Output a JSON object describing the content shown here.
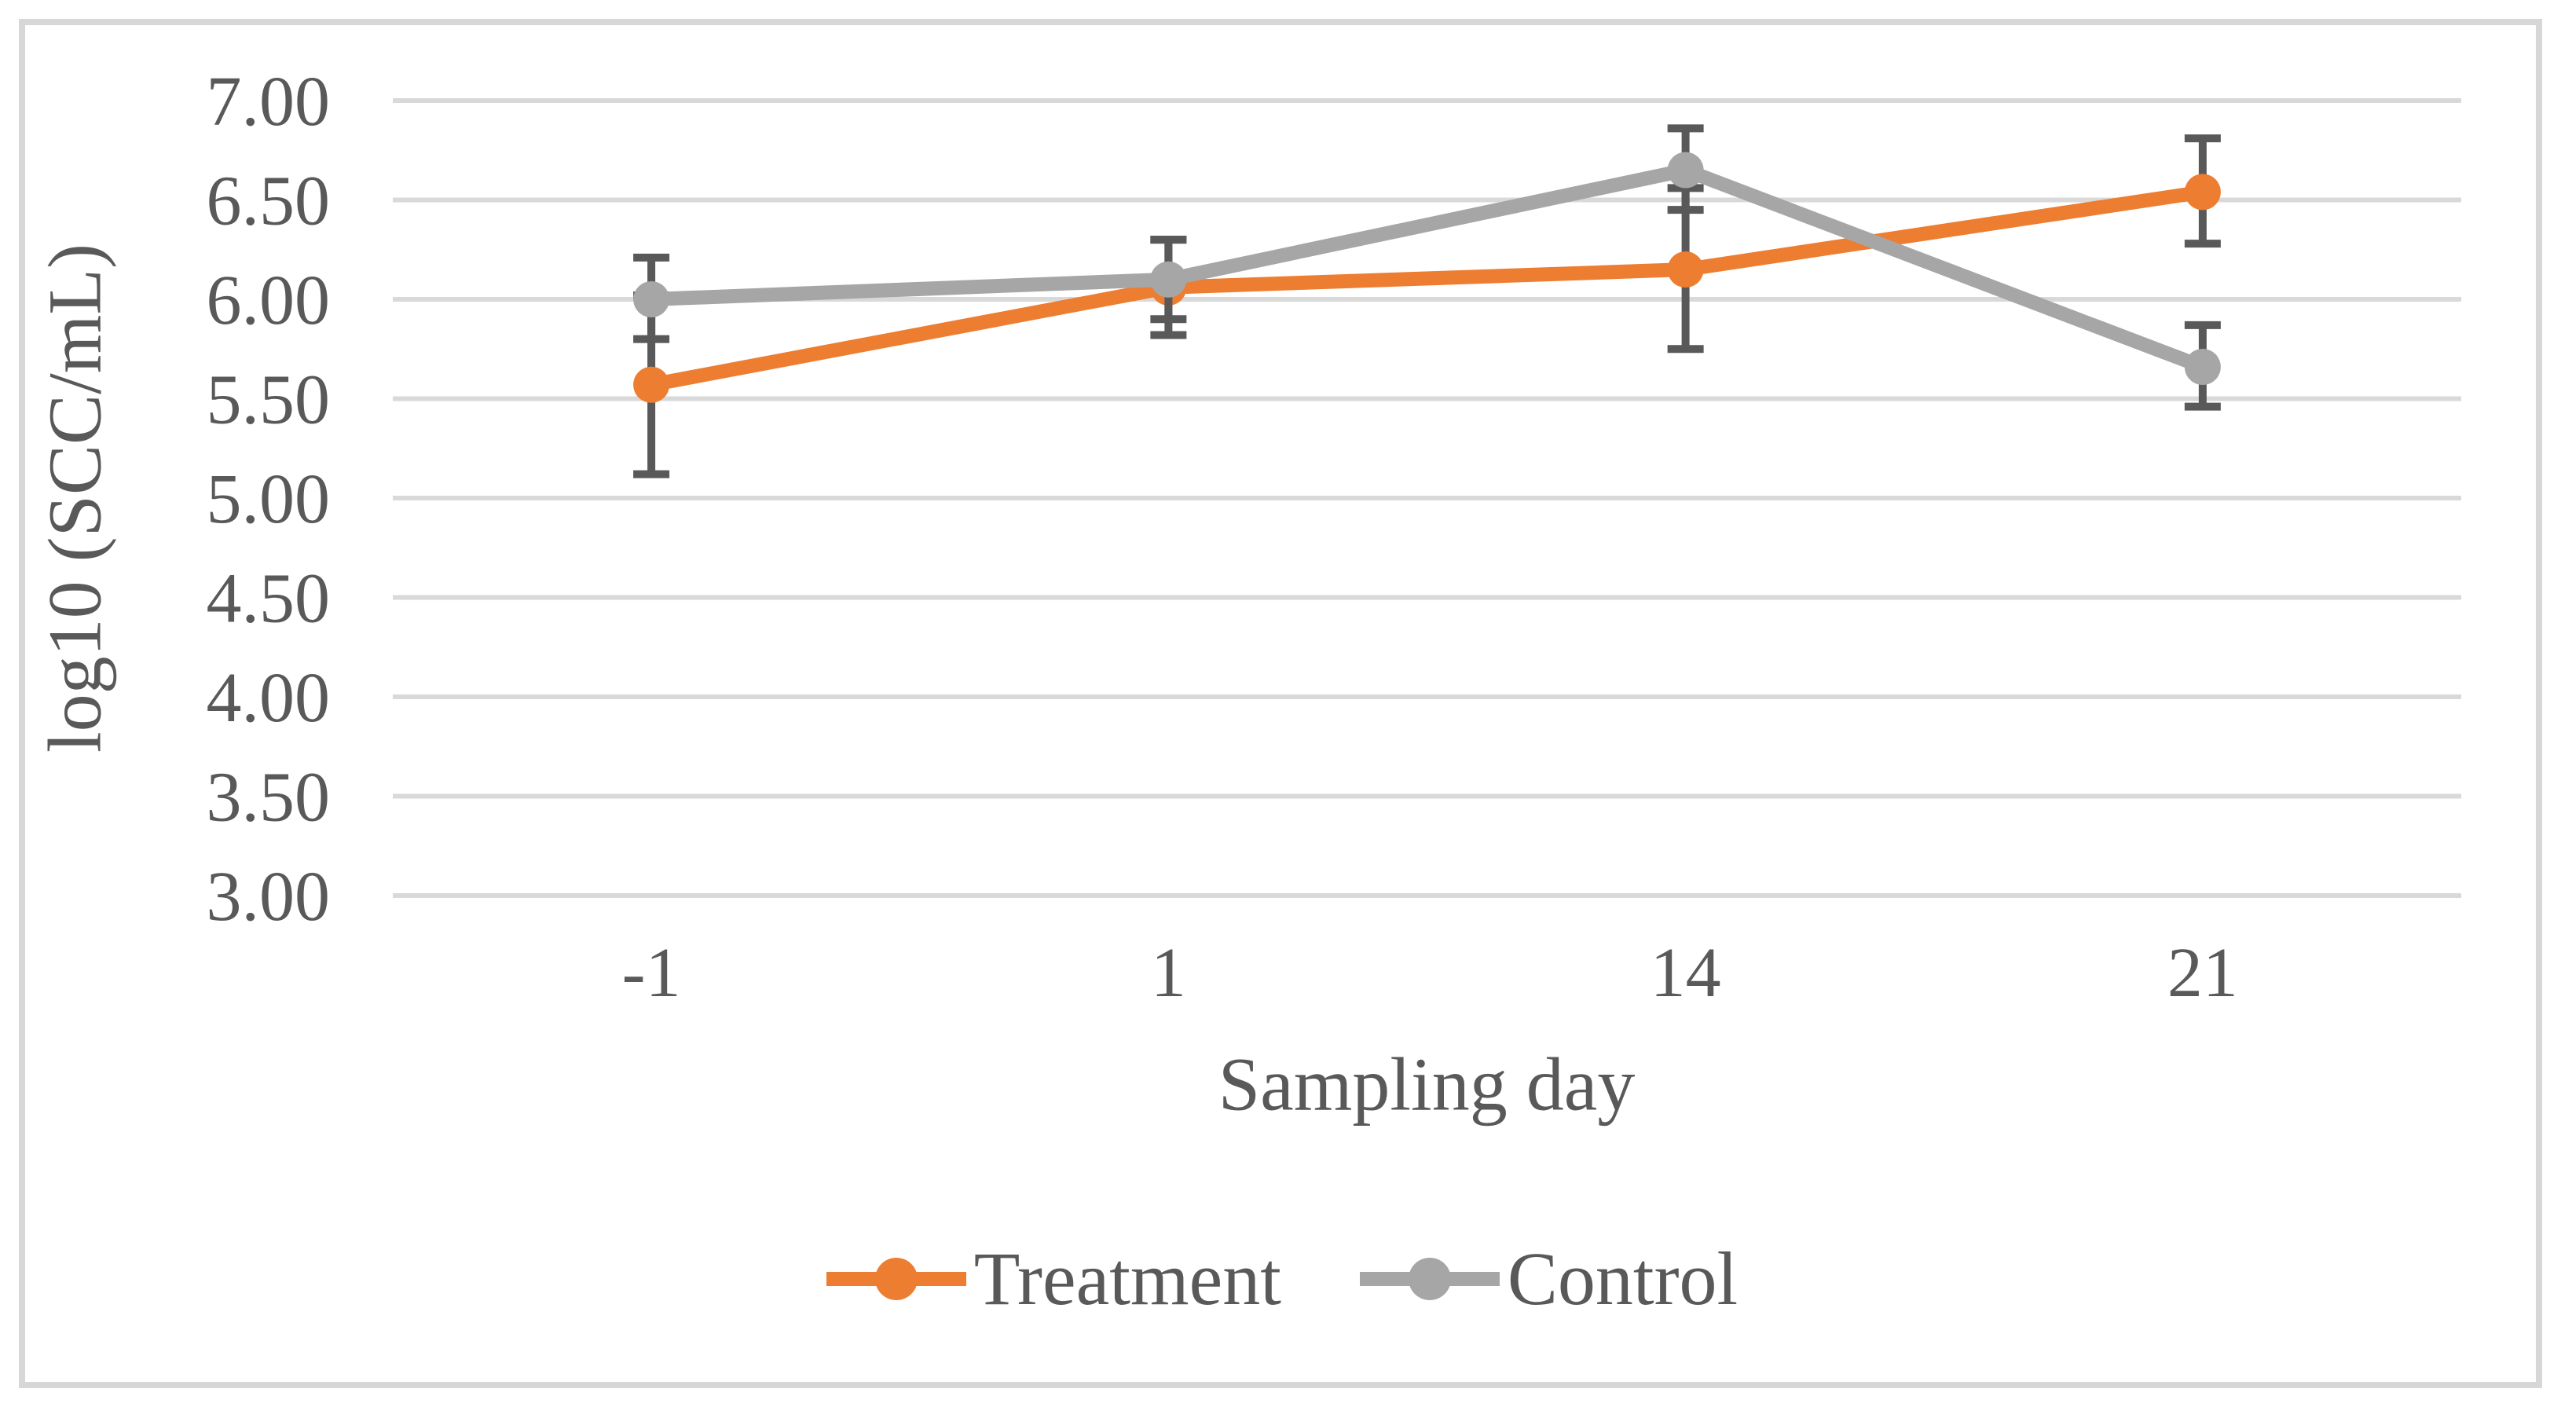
{
  "figure": {
    "background": "#ffffff",
    "border_color": "#d7d7d7"
  },
  "chart_data": {
    "type": "line",
    "title": "",
    "xlabel": "Sampling day",
    "ylabel": "log10 (SCC/mL)",
    "categories": [
      "-1",
      "1",
      "14",
      "21"
    ],
    "ylim": [
      3.0,
      7.0
    ],
    "ytick_step": 0.5,
    "ytick_labels": [
      "7.00",
      "6.50",
      "6.00",
      "5.50",
      "5.00",
      "4.50",
      "4.00",
      "3.50",
      "3.00"
    ],
    "ytick_values": [
      7.0,
      6.5,
      6.0,
      5.5,
      5.0,
      4.5,
      4.0,
      3.5,
      3.0
    ],
    "grid": true,
    "gridline_color": "#d9d9d9",
    "error_bar_color": "#595959",
    "legend_position": "bottom",
    "series": [
      {
        "name": "Treatment",
        "color": "#ED7D31",
        "values": [
          5.57,
          6.06,
          6.15,
          6.54
        ],
        "error_low": [
          5.12,
          5.82,
          5.75,
          6.28
        ],
        "error_high": [
          6.02,
          6.3,
          6.56,
          6.81
        ]
      },
      {
        "name": "Control",
        "color": "#A6A6A6",
        "values": [
          6.0,
          6.1,
          6.65,
          5.66
        ],
        "error_low": [
          5.8,
          5.9,
          6.45,
          5.46
        ],
        "error_high": [
          6.21,
          6.3,
          6.86,
          5.87
        ]
      }
    ]
  },
  "legend": {
    "items": [
      {
        "label": "Treatment",
        "color": "#ED7D31"
      },
      {
        "label": "Control",
        "color": "#A6A6A6"
      }
    ]
  },
  "text_color": "#595959"
}
